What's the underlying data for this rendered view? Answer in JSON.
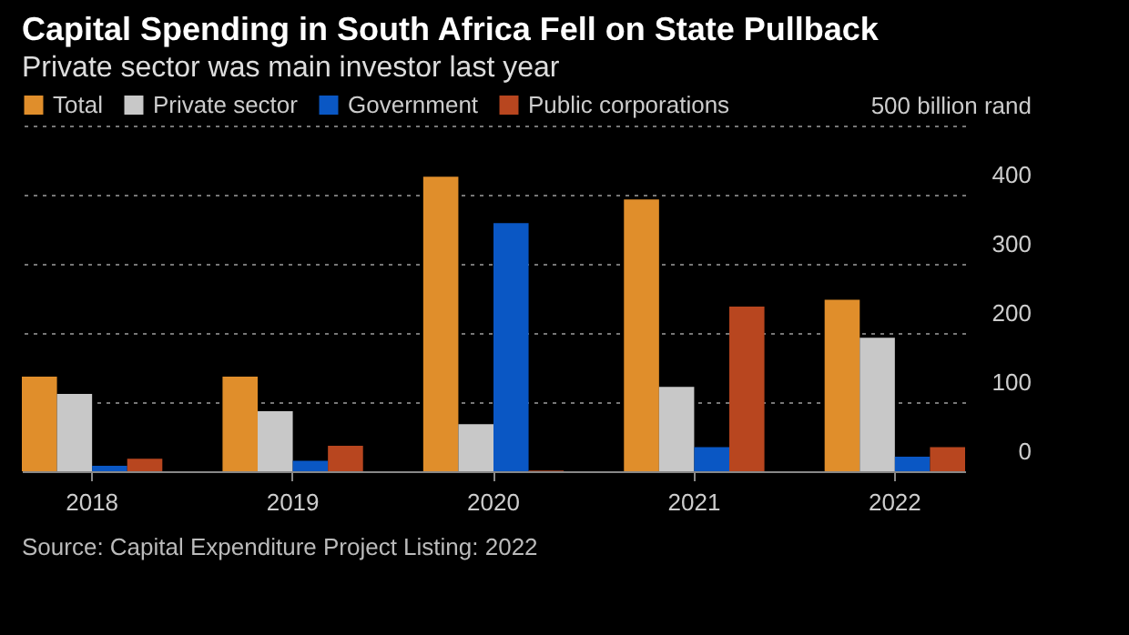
{
  "chart_data": {
    "type": "bar",
    "title": "Capital Spending in South Africa Fell on State Pullback",
    "subtitle": "Private sector was main investor last year",
    "categories": [
      "2018",
      "2019",
      "2020",
      "2021",
      "2022"
    ],
    "series": [
      {
        "name": "Total",
        "color": "#e08e2b",
        "values": [
          137,
          137,
          426,
          393,
          248
        ]
      },
      {
        "name": "Private sector",
        "color": "#c8c8c8",
        "values": [
          112,
          87,
          68,
          122,
          193
        ]
      },
      {
        "name": "Government",
        "color": "#0a57c4",
        "values": [
          8,
          15,
          359,
          35,
          21
        ]
      },
      {
        "name": "Public corporations",
        "color": "#b8461f",
        "values": [
          18,
          37,
          1,
          238,
          35
        ]
      }
    ],
    "ylim": [
      0,
      500
    ],
    "yticks": [
      0,
      100,
      200,
      300,
      400,
      {
        "value": 500,
        "label": "500 billion rand"
      }
    ],
    "grid": "y",
    "legend": "top left",
    "annotations": [
      "Source: Capital Expenditure Project Listing: 2022"
    ]
  }
}
